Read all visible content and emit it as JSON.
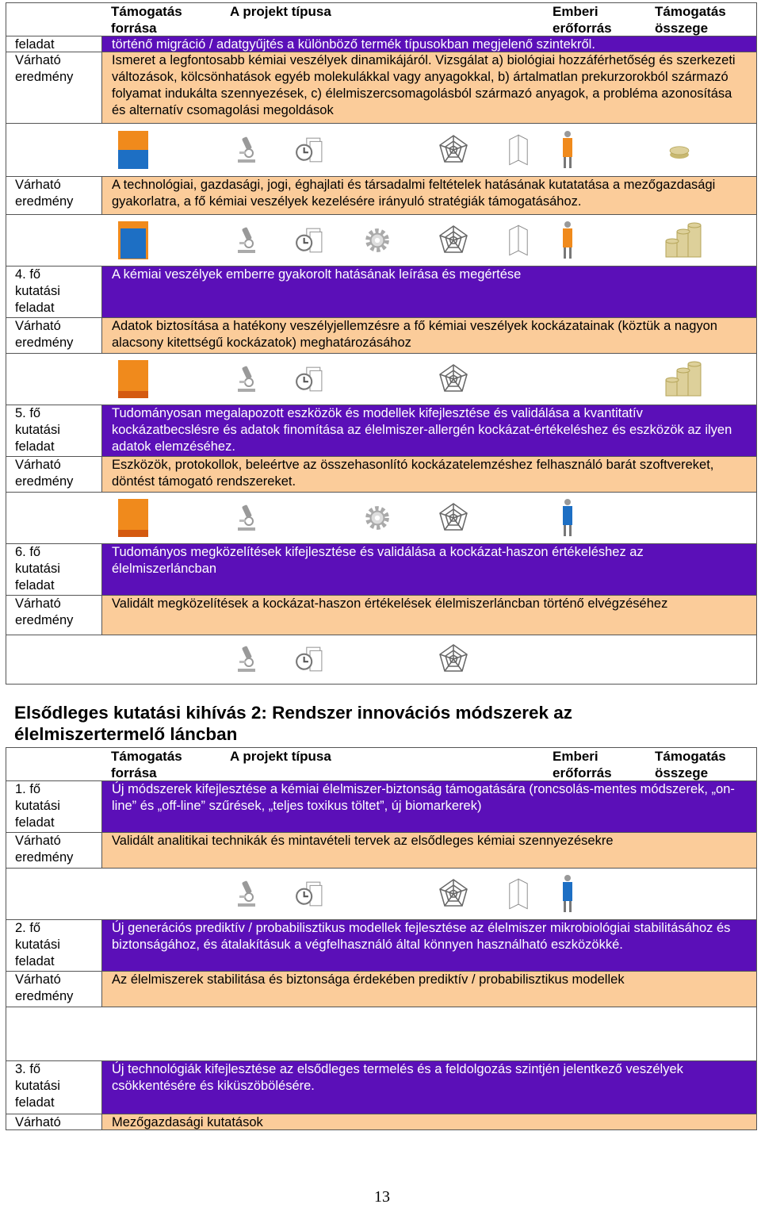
{
  "table_header": [
    "Támogatás forrása",
    "A projekt típusa",
    "Emberi erőforrás",
    "Támogatás összege"
  ],
  "table1": {
    "rows": [
      {
        "label": "feladat",
        "text": "történő migráció / adatgyűjtés a különböző termék típusokban megjelenő szintekről."
      },
      {
        "label": "Várható eredmény",
        "text": "Ismeret a legfontosabb kémiai veszélyek dinamikájáról. Vizsgálat a) biológiai hozzáférhetőség és szerkezeti változások, kölcsönhatások egyéb molekulákkal vagy anyagokkal, b) ártalmatlan prekurzorokból származó folyamat indukálta szennyezések, c) élelmiszercsomagolásból származó anyagok, a probléma azonosítása és alternatív csomagolási megoldások"
      },
      {
        "label": "Várható eredmény",
        "text": "A technológiai, gazdasági, jogi, éghajlati és társadalmi feltételek hatásának kutatatása a mezőgazdasági gyakorlatra, a fő kémiai veszélyek kezelésére irányuló stratégiák támogatásához."
      },
      {
        "label": "4. fő kutatási feladat",
        "text": "A kémiai veszélyek emberre gyakorolt hatásának leírása és megértése"
      },
      {
        "label": "Várható eredmény",
        "text": "Adatok biztosítása a hatékony veszélyjellemzésre a fő kémiai veszélyek kockázatainak (köztük a nagyon alacsony kitettségű kockázatok) meghatározásához"
      },
      {
        "label": "5. fő kutatási feladat",
        "text": "Tudományosan megalapozott eszközök és modellek kifejlesztése és validálása a kvantitatív kockázatbecslésre és adatok finomítása az élelmiszer-allergén kockázat-értékeléshez és eszközök az ilyen adatok elemzéséhez."
      },
      {
        "label": "Várható eredmény",
        "text": "Eszközök, protokollok, beleértve az összehasonlító kockázatelemzéshez felhasználó barát szoftvereket, döntést támogató rendszereket."
      },
      {
        "label": "6. fő kutatási feladat",
        "text": "Tudományos megközelítések kifejlesztése és validálása a kockázat-haszon értékeléshez az élelmiszerláncban"
      },
      {
        "label": "Várható eredmény",
        "text": "Validált megközelítések a kockázat-haszon értékelések élelmiszerláncban történő elvégzéséhez"
      }
    ]
  },
  "heading": "Elsődleges kutatási kihívás 2: Rendszer innovációs módszerek az élelmiszertermelő láncban",
  "table2": {
    "rows": [
      {
        "label": "1. fő kutatási feladat",
        "text": "Új módszerek kifejlesztése a kémiai élelmiszer-biztonság támogatására (roncsolás-mentes módszerek, „on-line” és „off-line” szűrések, „teljes toxikus töltet”, új biomarkerek)"
      },
      {
        "label": "Várható eredmény",
        "text": "Validált analitikai technikák és mintavételi tervek az elsődleges kémiai szennyezésekre"
      },
      {
        "label": "2. fő kutatási feladat",
        "text": "Új generációs prediktív / probabilisztikus modellek fejlesztése az élelmiszer mikrobiológiai stabilitásához és biztonságához, és átalakításuk a végfelhasználó által könnyen használható eszközökké."
      },
      {
        "label": "Várható eredmény",
        "text": "Az élelmiszerek stabilitása és biztonsága érdekében prediktív / probabilisztikus modellek"
      },
      {
        "label": "3. fő kutatási feladat",
        "text": "Új technológiák kifejlesztése az elsődleges termelés és a feldolgozás szintjén jelentkező veszélyek csökkentésére és kiküszöbölésére."
      },
      {
        "label": "Várható",
        "text": "Mezőgazdasági kutatások"
      }
    ]
  },
  "page_number": "13"
}
